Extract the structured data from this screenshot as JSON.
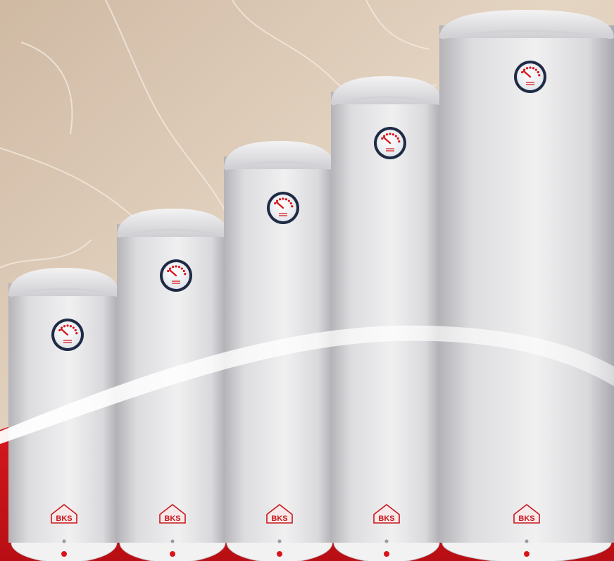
{
  "scene": {
    "subject": "five electric water heaters of increasing height",
    "background_marble_color": "#dccab6",
    "background_vein_color": "#efe3d5",
    "accent_red": "#d8141a",
    "wave_color": "#f4f4f4",
    "tank_body_color": "#e9e9ea",
    "tank_shadow_color": "#b9b9bd"
  },
  "heaters": [
    {
      "logo": "BKS",
      "gauge_icon": "thermometer-gauge-icon"
    },
    {
      "logo": "BKS",
      "gauge_icon": "thermometer-gauge-icon"
    },
    {
      "logo": "BKS",
      "gauge_icon": "thermometer-gauge-icon"
    },
    {
      "logo": "BKS",
      "gauge_icon": "thermometer-gauge-icon"
    },
    {
      "logo": "BKS",
      "gauge_icon": "thermometer-gauge-icon"
    }
  ]
}
